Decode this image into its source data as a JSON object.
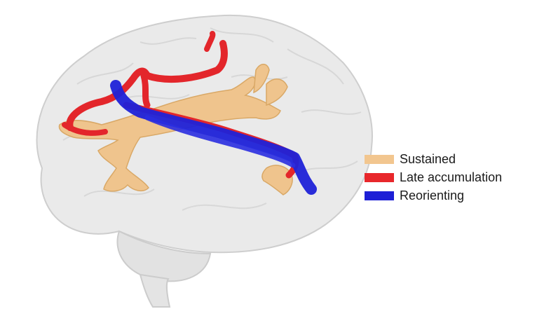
{
  "legend": {
    "items": [
      {
        "label": "Sustained",
        "color": "#f2c68f"
      },
      {
        "label": "Late accumulation",
        "color": "#e8272b"
      },
      {
        "label": "Reorienting",
        "color": "#1d1fd6"
      }
    ]
  },
  "colors": {
    "brain_fill": "#e9e9e9",
    "brain_stroke": "#cfcfcf",
    "sustained": "#efc48d",
    "late_accumulation": "#e3262b",
    "reorienting": "#1f22d8"
  }
}
